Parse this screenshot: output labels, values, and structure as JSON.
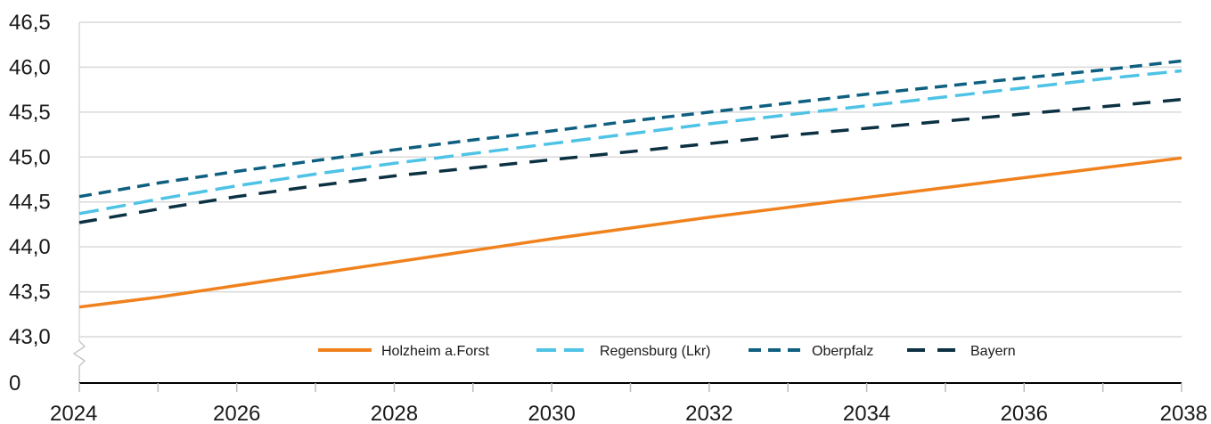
{
  "chart_data": {
    "type": "line",
    "title": "",
    "xlabel": "",
    "ylabel": "",
    "x": [
      2024,
      2025,
      2026,
      2027,
      2028,
      2029,
      2030,
      2031,
      2032,
      2033,
      2034,
      2035,
      2036,
      2037,
      2038
    ],
    "x_ticks": [
      "2024",
      "2026",
      "2028",
      "2030",
      "2032",
      "2034",
      "2036",
      "2038"
    ],
    "y_tick_labels": [
      "0",
      "43,0",
      "43,5",
      "44,0",
      "44,5",
      "45,0",
      "45,5",
      "46,0",
      "46,5"
    ],
    "ylim": [
      43.0,
      46.5
    ],
    "y_axis_break": true,
    "grid": "horizontal",
    "legend_position": "bottom-center inside plot",
    "series": [
      {
        "name": "Holzheim a.Forst",
        "color": "#f0821e",
        "style": "solid",
        "values": [
          43.33,
          43.44,
          43.57,
          43.7,
          43.83,
          43.96,
          44.09,
          44.21,
          44.33,
          44.44,
          44.55,
          44.66,
          44.77,
          44.88,
          44.99
        ]
      },
      {
        "name": "Regensburg (Lkr)",
        "color": "#4fc3e6",
        "style": "long-dash",
        "values": [
          44.37,
          44.53,
          44.68,
          44.81,
          44.93,
          45.04,
          45.15,
          45.26,
          45.37,
          45.47,
          45.57,
          45.67,
          45.77,
          45.87,
          45.96
        ]
      },
      {
        "name": "Oberpfalz",
        "color": "#0e5f80",
        "style": "short-dash",
        "values": [
          44.56,
          44.71,
          44.84,
          44.96,
          45.08,
          45.19,
          45.29,
          45.4,
          45.5,
          45.6,
          45.7,
          45.79,
          45.88,
          45.97,
          46.07
        ]
      },
      {
        "name": "Bayern",
        "color": "#0b3142",
        "style": "long-dash-gap",
        "values": [
          44.27,
          44.42,
          44.56,
          44.68,
          44.79,
          44.88,
          44.97,
          45.06,
          45.15,
          45.24,
          45.32,
          45.4,
          45.48,
          45.56,
          45.64
        ]
      }
    ]
  }
}
